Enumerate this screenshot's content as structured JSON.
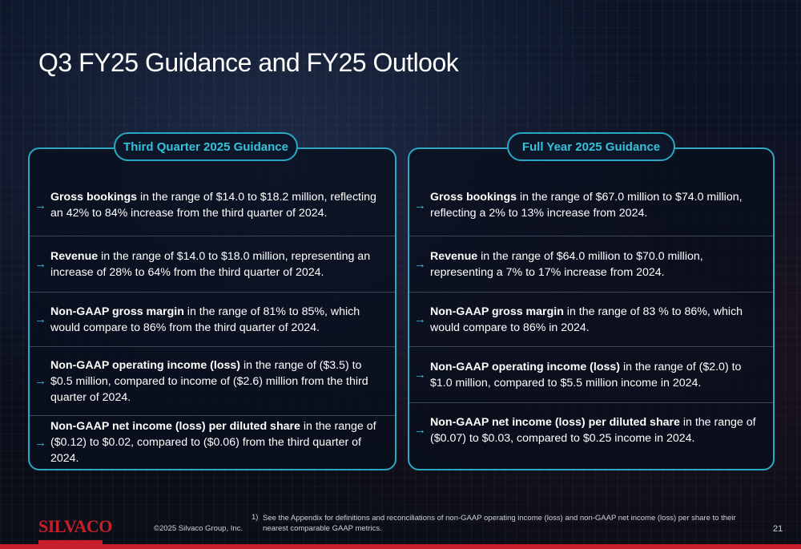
{
  "slide": {
    "title": "Q3 FY25 Guidance and FY25 Outlook",
    "arrow_icon": "→"
  },
  "q3": {
    "heading": "Third Quarter 2025 Guidance",
    "items": [
      {
        "bold": "Gross bookings",
        "text": " in the range of $14.0 to $18.2 million, reflecting an 42% to 84% increase from the third quarter of 2024."
      },
      {
        "bold": "Revenue",
        "text": " in the range of $14.0 to $18.0 million, representing an increase of 28% to 64% from the third quarter of 2024."
      },
      {
        "bold": "Non-GAAP gross margin",
        "text": " in the range of 81% to 85%, which would compare to 86% from the third quarter of 2024."
      },
      {
        "bold": "Non-GAAP operating income (loss)",
        "text": " in the range of ($3.5) to $0.5 million, compared to income of ($2.6) million from the third quarter of 2024."
      },
      {
        "bold": "Non-GAAP net income (loss) per diluted share",
        "text": " in the range of ($0.12) to $0.02, compared to ($0.06) from the third quarter of 2024."
      }
    ]
  },
  "fy": {
    "heading": "Full Year 2025 Guidance",
    "items": [
      {
        "bold": "Gross bookings",
        "text": " in the range of $67.0 million to $74.0 million, reflecting a 2% to 13% increase from 2024."
      },
      {
        "bold": "Revenue",
        "text": " in the range of $64.0 million to $70.0 million, representing a 7% to 17% increase from 2024."
      },
      {
        "bold": "Non-GAAP gross margin",
        "text": " in the range of 83 % to 86%, which would compare to 86% in 2024."
      },
      {
        "bold": "Non-GAAP operating income (loss)",
        "text": " in the range of ($2.0) to $1.0 million, compared to $5.5 million income in 2024."
      },
      {
        "bold": "Non-GAAP net income (loss)  per diluted share",
        "text": " in the range of ($0.07) to $0.03, compared to $0.25 income in 2024."
      }
    ]
  },
  "footer": {
    "logo": "SILVACO",
    "copyright": "©2025 Silvaco Group, Inc.",
    "footnote_number": "1)",
    "footnote": "See the Appendix for definitions and reconciliations of non-GAAP operating income (loss) and non-GAAP net income (loss) per share to their nearest comparable GAAP metrics.",
    "page_number": "21"
  },
  "colors": {
    "accent": "#2aa7c2",
    "accent_text": "#35c1dc",
    "brand_red": "#c8202a"
  }
}
